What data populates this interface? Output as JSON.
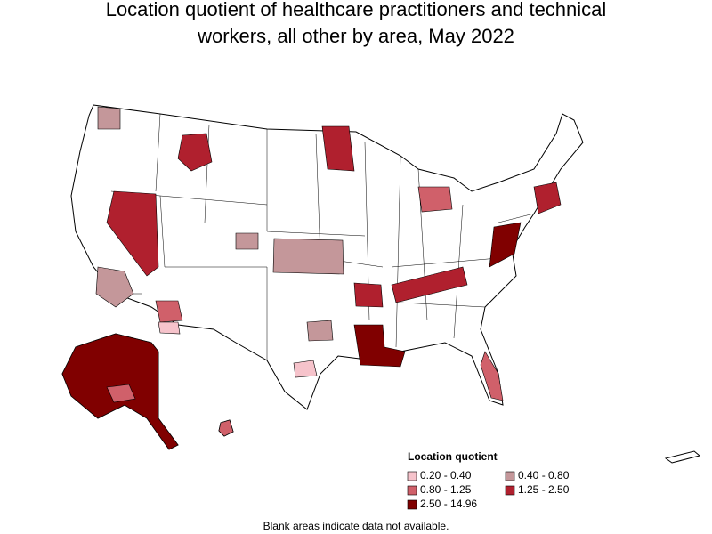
{
  "header": {
    "title": [
      "Location quotient of healthcare practitioners and technical",
      "workers, all other by area, May 2022"
    ]
  },
  "legend": {
    "title": "Location quotient",
    "items": [
      {
        "label": "0.20 - 0.40",
        "color": "#f6c3cb"
      },
      {
        "label": "0.40 - 0.80",
        "color": "#c4979a"
      },
      {
        "label": "0.80 - 1.25",
        "color": "#d0606a"
      },
      {
        "label": "1.25 - 2.50",
        "color": "#b0202e"
      },
      {
        "label": "2.50 - 14.96",
        "color": "#800000"
      }
    ]
  },
  "footnote": "Blank areas indicate data not available."
}
